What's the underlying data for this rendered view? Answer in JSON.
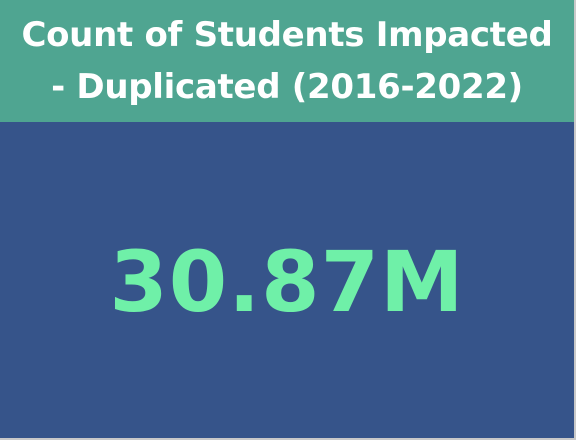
{
  "card": {
    "title": "Count of Students Impacted - Duplicated (2016-2022)",
    "value": "30.87M"
  },
  "colors": {
    "header_background": "#4fa591",
    "body_background": "#36548a",
    "title_text": "#ffffff",
    "value_text": "#6ff0a8"
  }
}
